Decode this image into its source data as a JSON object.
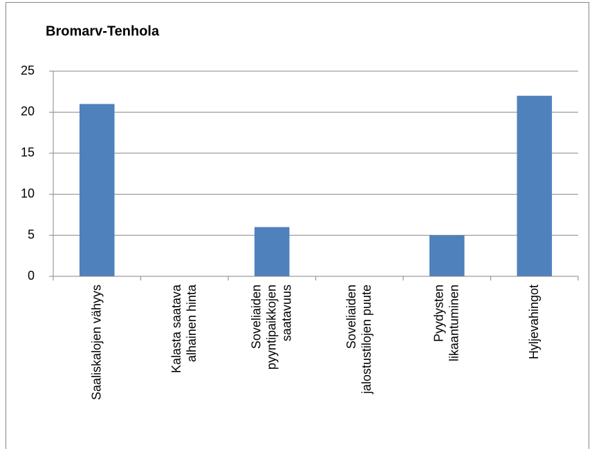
{
  "chart_data": {
    "type": "bar",
    "title": "Bromarv-Tenhola",
    "categories": [
      "Saaliskalojen vähyys",
      "Kalasta saatava\nalhainen hinta",
      "Soveliaiden\npyyntipaikkojen\nsaatavuus",
      "Soveliaiden\njalostustilojen puute",
      "Pyydysten\nlikaantuminen",
      "Hyljevahingot"
    ],
    "values": [
      21,
      0,
      6,
      0,
      5,
      22
    ],
    "color": "#4f81bd",
    "ylim": [
      0,
      25
    ],
    "yticks": [
      0,
      5,
      10,
      15,
      20,
      25
    ],
    "grid": true
  }
}
